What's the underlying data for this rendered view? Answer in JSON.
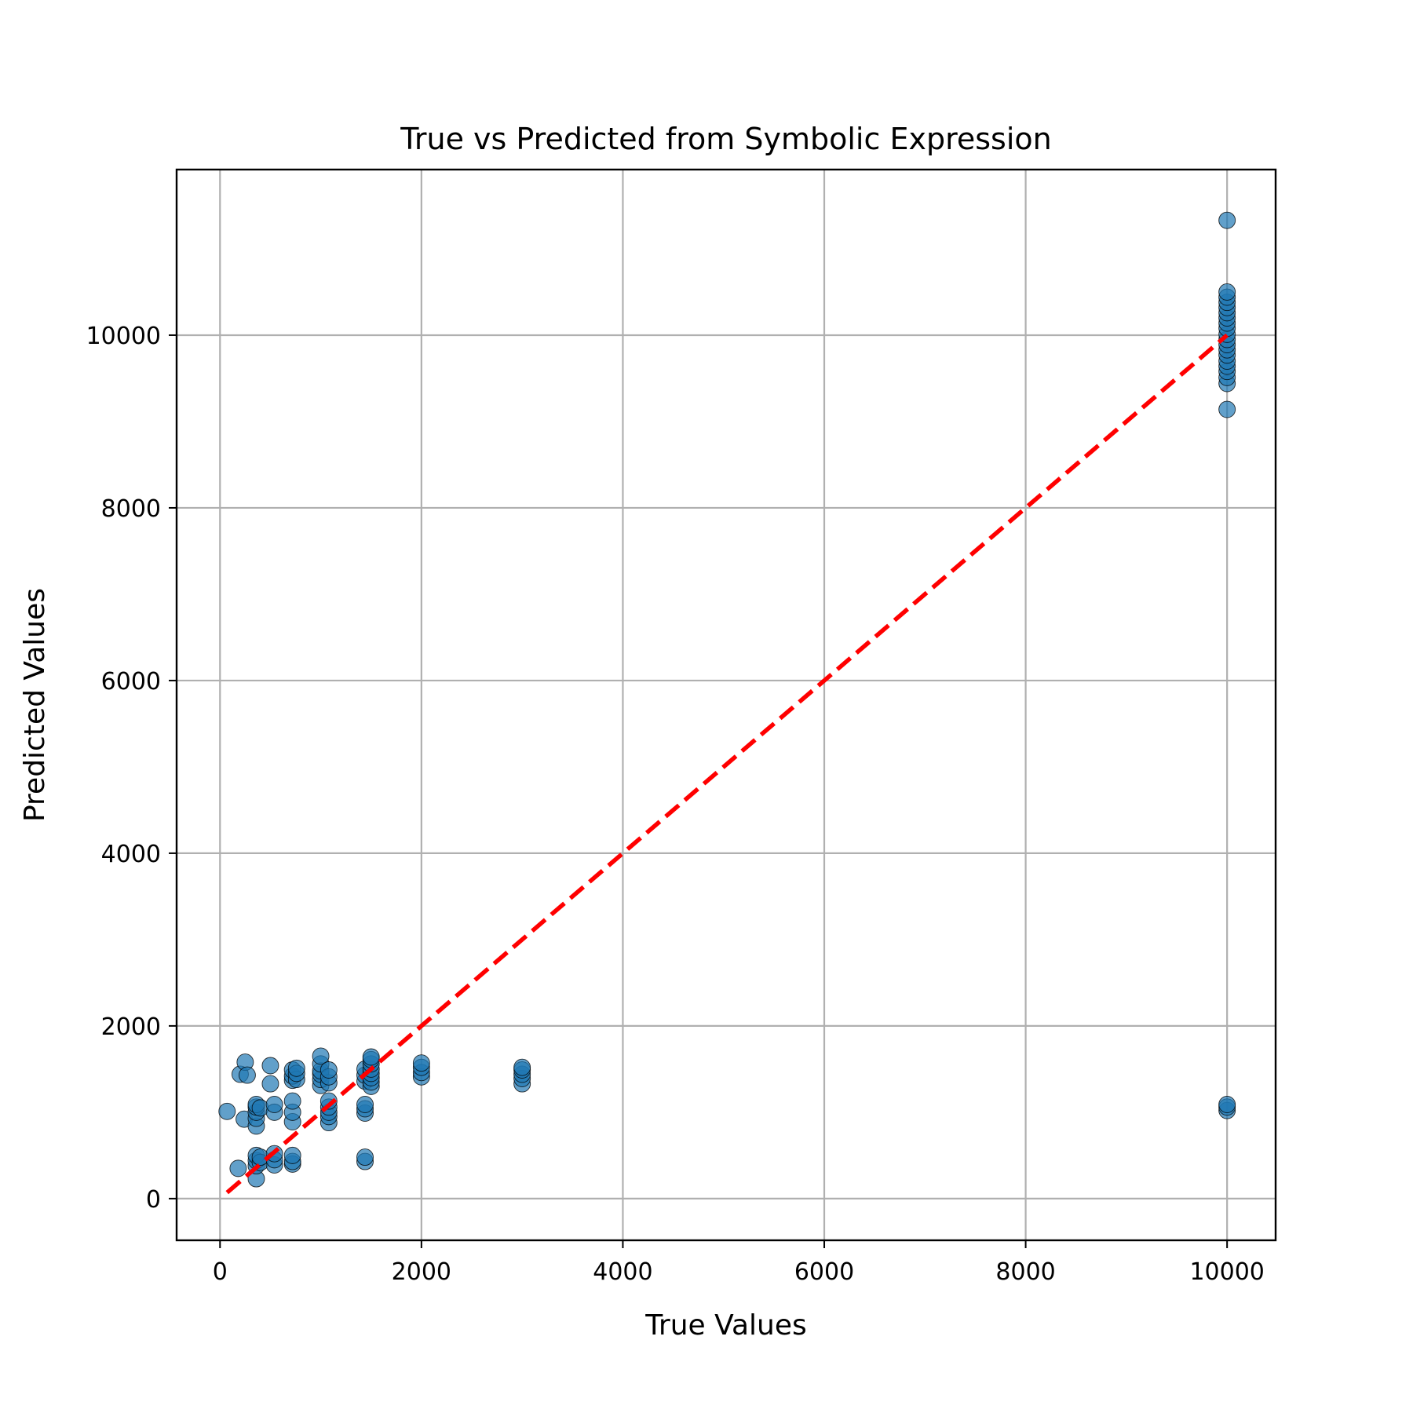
{
  "chart_data": {
    "type": "scatter",
    "title": "True vs Predicted from Symbolic Expression",
    "xlabel": "True Values",
    "ylabel": "Predicted Values",
    "xlim": [
      -431,
      10482
    ],
    "ylim": [
      -483,
      11918
    ],
    "x_ticks": [
      0,
      2000,
      4000,
      6000,
      8000,
      10000
    ],
    "y_ticks": [
      0,
      2000,
      4000,
      6000,
      8000,
      10000
    ],
    "grid": true,
    "legend": "none",
    "colors": {
      "points": "#1f77b4",
      "point_edge": "#000000",
      "reference_line": "#ff0000",
      "grid": "#b0b0b0"
    },
    "reference_line": {
      "style": "dashed",
      "x": [
        70,
        10000
      ],
      "y": [
        70,
        10000
      ]
    },
    "series": [
      {
        "points": [
          [
            70,
            1010
          ],
          [
            180,
            350
          ],
          [
            200,
            1440
          ],
          [
            240,
            920
          ],
          [
            250,
            1580
          ],
          [
            270,
            1430
          ],
          [
            360,
            230
          ],
          [
            360,
            380
          ],
          [
            360,
            440
          ],
          [
            360,
            500
          ],
          [
            360,
            840
          ],
          [
            360,
            930
          ],
          [
            360,
            1000
          ],
          [
            360,
            1060
          ],
          [
            360,
            1090
          ],
          [
            400,
            420
          ],
          [
            400,
            480
          ],
          [
            400,
            1050
          ],
          [
            500,
            1540
          ],
          [
            500,
            1330
          ],
          [
            540,
            390
          ],
          [
            540,
            450
          ],
          [
            540,
            520
          ],
          [
            540,
            1000
          ],
          [
            540,
            1090
          ],
          [
            720,
            400
          ],
          [
            720,
            430
          ],
          [
            720,
            500
          ],
          [
            720,
            890
          ],
          [
            720,
            1000
          ],
          [
            720,
            1130
          ],
          [
            720,
            1370
          ],
          [
            720,
            1420
          ],
          [
            720,
            1490
          ],
          [
            760,
            1380
          ],
          [
            760,
            1450
          ],
          [
            760,
            1510
          ],
          [
            1000,
            1310
          ],
          [
            1000,
            1380
          ],
          [
            1000,
            1440
          ],
          [
            1000,
            1480
          ],
          [
            1000,
            1560
          ],
          [
            1000,
            1650
          ],
          [
            1080,
            880
          ],
          [
            1080,
            950
          ],
          [
            1080,
            1000
          ],
          [
            1080,
            1060
          ],
          [
            1080,
            1130
          ],
          [
            1080,
            1340
          ],
          [
            1080,
            1410
          ],
          [
            1080,
            1490
          ],
          [
            1440,
            430
          ],
          [
            1440,
            480
          ],
          [
            1440,
            990
          ],
          [
            1440,
            1040
          ],
          [
            1440,
            1090
          ],
          [
            1440,
            1360
          ],
          [
            1440,
            1430
          ],
          [
            1440,
            1500
          ],
          [
            1500,
            1300
          ],
          [
            1500,
            1350
          ],
          [
            1500,
            1400
          ],
          [
            1500,
            1450
          ],
          [
            1500,
            1500
          ],
          [
            1500,
            1560
          ],
          [
            1500,
            1610
          ],
          [
            1500,
            1640
          ],
          [
            2000,
            1410
          ],
          [
            2000,
            1460
          ],
          [
            2000,
            1520
          ],
          [
            2000,
            1570
          ],
          [
            3000,
            1330
          ],
          [
            3000,
            1390
          ],
          [
            3000,
            1440
          ],
          [
            3000,
            1490
          ],
          [
            3000,
            1520
          ],
          [
            10000,
            1020
          ],
          [
            10000,
            1060
          ],
          [
            10000,
            1090
          ],
          [
            10000,
            9140
          ],
          [
            10000,
            9440
          ],
          [
            10000,
            9510
          ],
          [
            10000,
            9580
          ],
          [
            10000,
            9640
          ],
          [
            10000,
            9700
          ],
          [
            10000,
            9770
          ],
          [
            10000,
            9830
          ],
          [
            10000,
            9890
          ],
          [
            10000,
            9950
          ],
          [
            10000,
            10010
          ],
          [
            10000,
            10080
          ],
          [
            10000,
            10140
          ],
          [
            10000,
            10200
          ],
          [
            10000,
            10260
          ],
          [
            10000,
            10320
          ],
          [
            10000,
            10380
          ],
          [
            10000,
            10440
          ],
          [
            10000,
            10500
          ],
          [
            10000,
            11330
          ]
        ]
      }
    ]
  }
}
